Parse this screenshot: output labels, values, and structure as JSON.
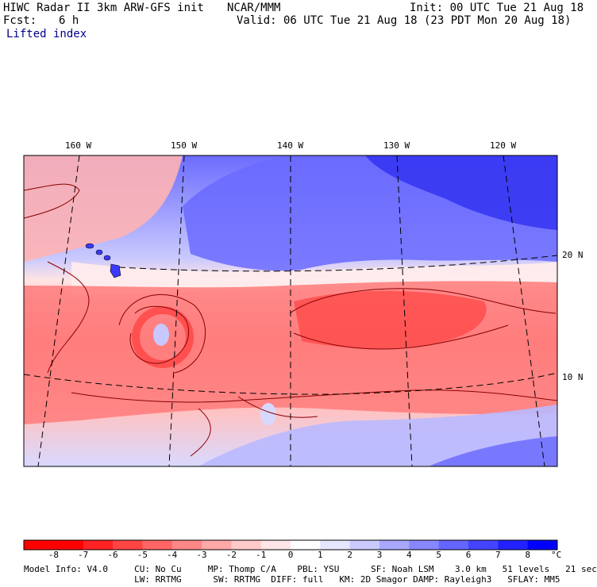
{
  "header": {
    "model": "HIWC Radar II 3km ARW-GFS init",
    "org": "NCAR/MMM",
    "init": "Init: 00 UTC Tue 21 Aug 18",
    "fcst_label": "Fcst:",
    "fcst_value": "6 h",
    "valid": "Valid: 06 UTC Tue 21 Aug 18 (23 PDT Mon 20 Aug 18)",
    "field": "Lifted index"
  },
  "map": {
    "lon_labels": [
      "160 W",
      "150 W",
      "140 W",
      "130 W",
      "120 W"
    ],
    "lat_labels": [
      "20 N",
      "10 N"
    ],
    "colors": {
      "border": "#000000",
      "coast": "#000000",
      "contour": "#8b0000",
      "grid": "#000000"
    }
  },
  "colorbar": {
    "unit": "°C",
    "ticks": [
      "-8",
      "-7",
      "-6",
      "-5",
      "-4",
      "-3",
      "-2",
      "-1",
      "0",
      "1",
      "2",
      "3",
      "4",
      "5",
      "6",
      "7",
      "8"
    ],
    "colors": [
      "#ff0000",
      "#ff2222",
      "#ff4444",
      "#ff6565",
      "#ff8787",
      "#ffa8a8",
      "#ffcaca",
      "#ffe6e6",
      "#ffffff",
      "#e6e6ff",
      "#cacaff",
      "#a8a8ff",
      "#8787ff",
      "#6565ff",
      "#4444ff",
      "#2222ff",
      "#0000ff"
    ]
  },
  "footer": {
    "line1": "Model Info: V4.0     CU: No Cu     MP: Thomp C/A    PBL: YSU      SF: Noah LSM    3.0 km   51 levels   21 sec",
    "line2": "                     LW: RRTMG      SW: RRTMG  DIFF: full   KM: 2D Smagor DAMP: Rayleigh3   SFLAY: MM5"
  }
}
